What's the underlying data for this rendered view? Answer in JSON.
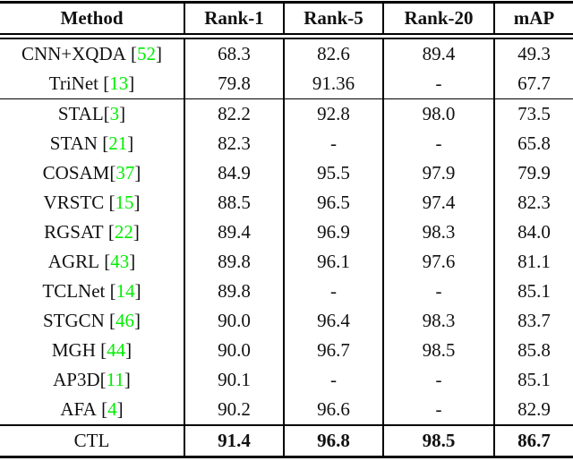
{
  "page": {
    "background": "#ffffff",
    "text_color": "#111111",
    "rule_color": "#000000"
  },
  "table": {
    "headers": [
      "Method",
      "Rank-1",
      "Rank-5",
      "Rank-20",
      "mAP"
    ],
    "citation_color": "#00ee00",
    "missing_value": "-",
    "rows": [
      {
        "method": "CNN+XQDA",
        "citation": "52",
        "citation_spaced": true,
        "group": 1,
        "bold": false,
        "values": [
          "68.3",
          "82.6",
          "89.4",
          "49.3"
        ]
      },
      {
        "method": "TriNet",
        "citation": "13",
        "citation_spaced": true,
        "group": 1,
        "bold": false,
        "values": [
          "79.8",
          "91.36",
          "-",
          "67.7"
        ]
      },
      {
        "method": "STAL",
        "citation": "3",
        "citation_spaced": false,
        "group": 2,
        "bold": false,
        "values": [
          "82.2",
          "92.8",
          "98.0",
          "73.5"
        ]
      },
      {
        "method": "STAN",
        "citation": "21",
        "citation_spaced": true,
        "group": 2,
        "bold": false,
        "values": [
          "82.3",
          "-",
          "-",
          "65.8"
        ]
      },
      {
        "method": "COSAM",
        "citation": "37",
        "citation_spaced": false,
        "group": 2,
        "bold": false,
        "values": [
          "84.9",
          "95.5",
          "97.9",
          "79.9"
        ]
      },
      {
        "method": "VRSTC",
        "citation": "15",
        "citation_spaced": true,
        "group": 2,
        "bold": false,
        "values": [
          "88.5",
          "96.5",
          "97.4",
          "82.3"
        ]
      },
      {
        "method": "RGSAT",
        "citation": "22",
        "citation_spaced": true,
        "group": 2,
        "bold": false,
        "values": [
          "89.4",
          "96.9",
          "98.3",
          "84.0"
        ]
      },
      {
        "method": "AGRL",
        "citation": "43",
        "citation_spaced": true,
        "group": 2,
        "bold": false,
        "values": [
          "89.8",
          "96.1",
          "97.6",
          "81.1"
        ]
      },
      {
        "method": "TCLNet",
        "citation": "14",
        "citation_spaced": true,
        "group": 2,
        "bold": false,
        "values": [
          "89.8",
          "-",
          "-",
          "85.1"
        ]
      },
      {
        "method": "STGCN",
        "citation": "46",
        "citation_spaced": true,
        "group": 2,
        "bold": false,
        "values": [
          "90.0",
          "96.4",
          "98.3",
          "83.7"
        ]
      },
      {
        "method": "MGH",
        "citation": "44",
        "citation_spaced": true,
        "group": 2,
        "bold": false,
        "values": [
          "90.0",
          "96.7",
          "98.5",
          "85.8"
        ]
      },
      {
        "method": "AP3D",
        "citation": "11",
        "citation_spaced": false,
        "group": 2,
        "bold": false,
        "values": [
          "90.1",
          "-",
          "-",
          "85.1"
        ]
      },
      {
        "method": "AFA",
        "citation": "4",
        "citation_spaced": true,
        "group": 2,
        "bold": false,
        "values": [
          "90.2",
          "96.6",
          "-",
          "82.9"
        ]
      },
      {
        "method": "CTL",
        "citation": null,
        "citation_spaced": false,
        "group": 3,
        "bold": true,
        "values": [
          "91.4",
          "96.8",
          "98.5",
          "86.7"
        ]
      }
    ]
  }
}
